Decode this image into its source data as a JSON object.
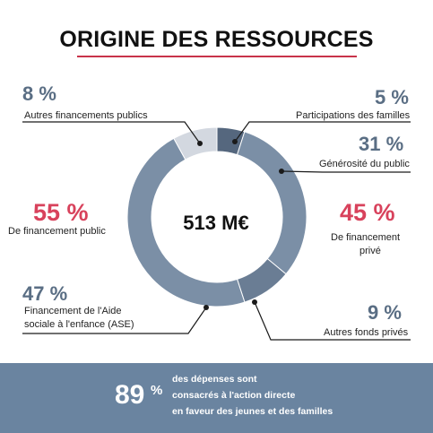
{
  "title": "ORIGINE DES RESSOURCES",
  "chart_data": {
    "type": "pie",
    "title": "ORIGINE DES RESSOURCES",
    "center_label": "513 M€",
    "colors": {
      "main": "#7b8fa6",
      "light": "#d3d8e0",
      "dark": "#55677e",
      "accent_red": "#d8425c",
      "title_rule": "#c8334a",
      "banner_bg": "#6a84a0"
    },
    "slices": [
      {
        "label": "Participations des familles",
        "value": 5,
        "value_label": "5 %",
        "color": "#55677e"
      },
      {
        "label": "Générosité du public",
        "value": 31,
        "value_label": "31 %",
        "color": "#7b8fa6"
      },
      {
        "label": "Autres fonds privés",
        "value": 9,
        "value_label": "9 %",
        "color": "#6a7d94"
      },
      {
        "label": "Financement de l'Aide sociale à l'enfance (ASE)",
        "value": 47,
        "value_label": "47 %",
        "color": "#7b8fa6"
      },
      {
        "label": "Autres financements publics",
        "value": 8,
        "value_label": "8 %",
        "color": "#d3d8e0"
      }
    ],
    "groups": [
      {
        "value_label": "55 %",
        "label": "De financement public"
      },
      {
        "value_label": "45 %",
        "label_line1": "De financement",
        "label_line2": "privé"
      }
    ]
  },
  "banner": {
    "percent": "89",
    "percent_sign": "%",
    "line1": "des dépenses sont",
    "line2": "consacrés à l'action directe",
    "line3": "en faveur des jeunes et des familles"
  }
}
